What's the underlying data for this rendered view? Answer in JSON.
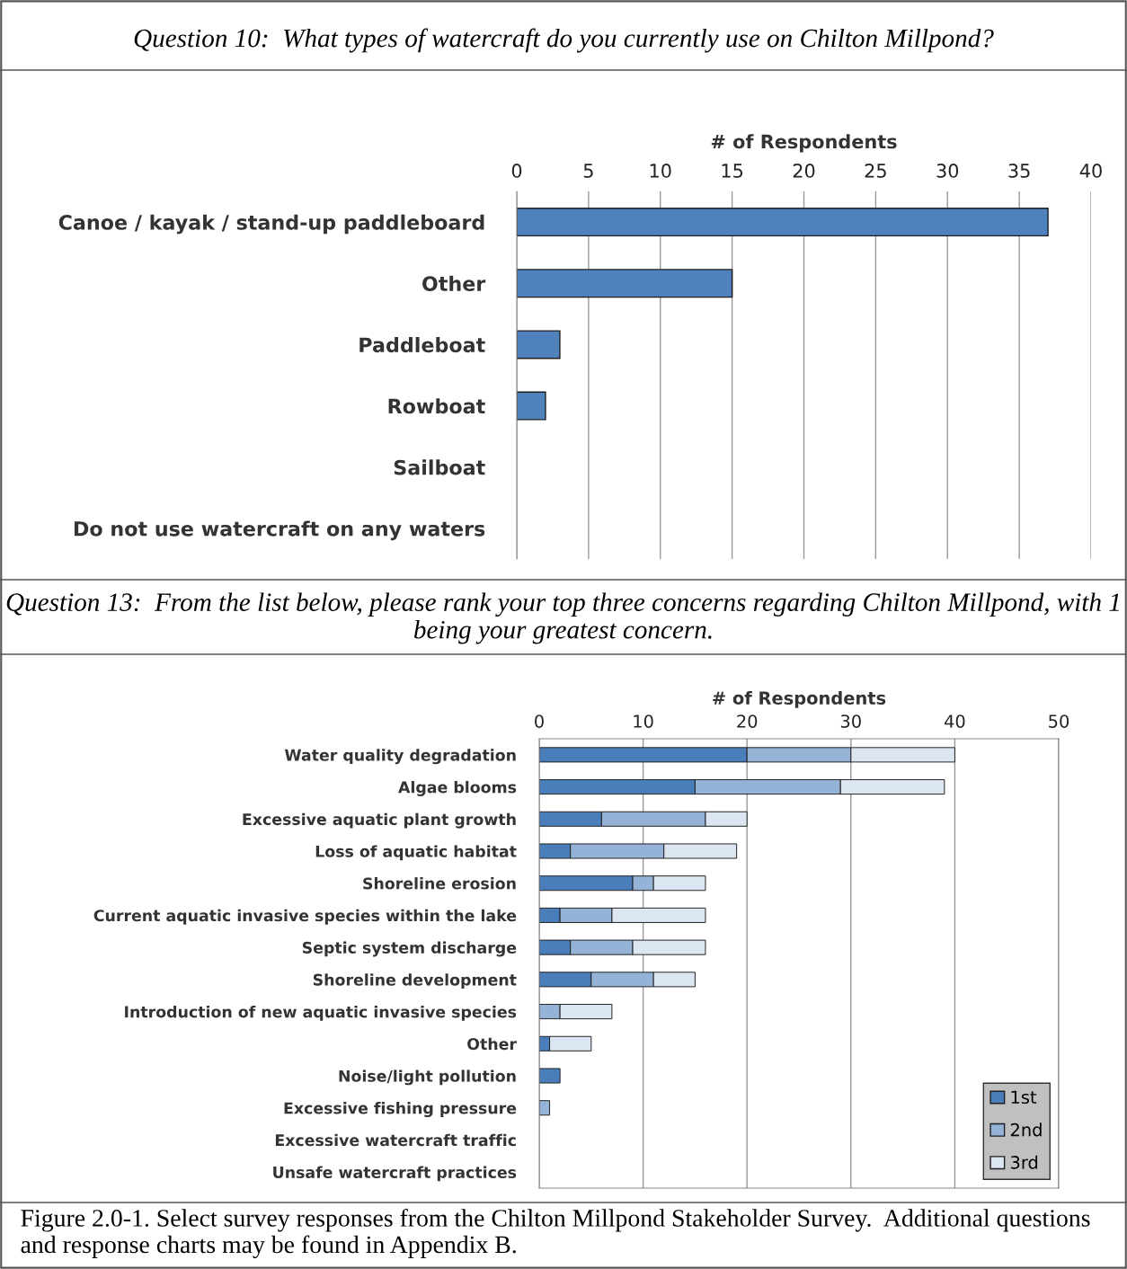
{
  "chart_data": [
    {
      "type": "bar",
      "orientation": "horizontal",
      "title": "Question 10:  What types of watercraft do you currently use on Chilton Millpond?",
      "xlabel": "# of Respondents",
      "categories": [
        "Canoe / kayak / stand-up paddleboard",
        "Other",
        "Paddleboat",
        "Rowboat",
        "Sailboat",
        "Do not use watercraft on any waters"
      ],
      "values": [
        37,
        15,
        3,
        2,
        0,
        0
      ],
      "color": "#4f81bd",
      "xlim": [
        0,
        40
      ],
      "xticks": [
        0,
        5,
        10,
        15,
        20,
        25,
        30,
        35,
        40
      ],
      "grid": "x",
      "legend": false
    },
    {
      "type": "bar",
      "orientation": "horizontal",
      "stacked": true,
      "title": "Question 13:  From the list below, please rank your top three concerns regarding Chilton Millpond, with 1 being your greatest concern.",
      "xlabel": "# of Respondents",
      "categories": [
        "Water quality degradation",
        "Algae blooms",
        "Excessive aquatic plant growth",
        "Loss of aquatic habitat",
        "Shoreline erosion",
        "Current aquatic invasive species within the lake",
        "Septic system discharge",
        "Shoreline development",
        "Introduction of new aquatic invasive species",
        "Other",
        "Noise/light pollution",
        "Excessive fishing pressure",
        "Excessive watercraft traffic",
        "Unsafe watercraft practices"
      ],
      "series": [
        {
          "name": "1st",
          "color": "#4a7ebb",
          "values": [
            20,
            15,
            6,
            3,
            9,
            2,
            3,
            5,
            0,
            1,
            2,
            0,
            0,
            0
          ]
        },
        {
          "name": "2nd",
          "color": "#95b3d7",
          "values": [
            10,
            14,
            10,
            9,
            2,
            5,
            6,
            6,
            2,
            0,
            0,
            1,
            0,
            0
          ]
        },
        {
          "name": "3rd",
          "color": "#dce6f2",
          "values": [
            10,
            10,
            4,
            7,
            5,
            9,
            7,
            4,
            5,
            4,
            0,
            0,
            0,
            0
          ]
        }
      ],
      "xlim": [
        0,
        50
      ],
      "xticks": [
        0,
        10,
        20,
        30,
        40,
        50
      ],
      "grid": "x",
      "legend": "bottom right",
      "annotations": [
        "Figure 2.0-1. Select survey responses from the Chilton Millpond Stakeholder Survey.  Additional questions and response charts may be found in Appendix B."
      ]
    }
  ]
}
